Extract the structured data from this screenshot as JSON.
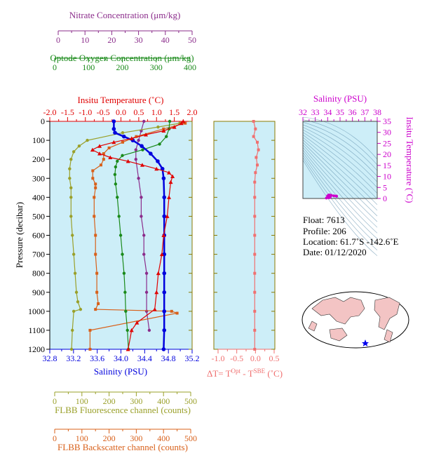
{
  "colors": {
    "nitrate": "#8b2c8b",
    "oxygen": "#1a8a1a",
    "temperature": "#e00000",
    "salinity": "#0000dd",
    "fluorescence": "#9aa02a",
    "backscatter": "#d8601a",
    "delta": "#f07070",
    "ts_salinity": "#cc00cc",
    "panel_bg": "#cdeef8",
    "frame": "#8a7a00"
  },
  "axes": {
    "nitrate": {
      "label": "Nitrate Concentration (μm/kg)",
      "ticks": [
        "0",
        "10",
        "20",
        "30",
        "40",
        "50"
      ]
    },
    "oxygen": {
      "label": "Optode Oxygen Concentration (μm/kg)",
      "ticks": [
        "0",
        "100",
        "200",
        "300",
        "400"
      ]
    },
    "temperature": {
      "label": "Insitu Temperature (˚C)",
      "ticks": [
        "-2.0",
        "-1.5",
        "-1.0",
        "-0.5",
        "0.0",
        "0.5",
        "1.0",
        "1.5",
        "2.0"
      ]
    },
    "salinity": {
      "label": "Salinity (PSU)",
      "ticks": [
        "32.8",
        "33.2",
        "33.6",
        "34.0",
        "34.4",
        "34.8",
        "35.2"
      ]
    },
    "pressure": {
      "label": "Pressure (decibar)",
      "ticks": [
        "0",
        "100",
        "200",
        "300",
        "400",
        "500",
        "600",
        "700",
        "800",
        "900",
        "1000",
        "1100",
        "1200"
      ]
    },
    "fluorescence": {
      "label": "FLBB Fluorescence channel (counts)",
      "ticks": [
        "0",
        "100",
        "200",
        "300",
        "400",
        "500"
      ]
    },
    "backscatter": {
      "label": "FLBB Backscatter channel (counts)",
      "ticks": [
        "0",
        "100",
        "200",
        "300",
        "400",
        "500"
      ]
    },
    "delta": {
      "label_main": "ΔT= T",
      "label_sup1": "Opt",
      "label_mid": " - T",
      "label_sup2": "SBE",
      "label_end": " (˚C)",
      "ticks": [
        "-1.0",
        "-0.5",
        "0.0",
        "0.5"
      ]
    },
    "ts_salinity": {
      "label": "Salinity (PSU)",
      "ticks": [
        "32",
        "33",
        "34",
        "35",
        "36",
        "37",
        "38"
      ]
    },
    "ts_temperature": {
      "label": "Insitu Temperature (˚C)",
      "ticks": [
        "0",
        "5",
        "10",
        "15",
        "20",
        "25",
        "30",
        "35"
      ]
    }
  },
  "info": {
    "float": "Float:  7613",
    "profile": "Profile:  206",
    "location": "Location:  61.7˚S  -142.6˚E",
    "date": "Date:  01/12/2020"
  },
  "chart_data": [
    {
      "type": "line",
      "name": "Insitu Temperature (˚C)",
      "unit": "C",
      "points": [
        [
          1.75,
          0
        ],
        [
          1.7,
          10
        ],
        [
          1.5,
          30
        ],
        [
          1.2,
          50
        ],
        [
          0.7,
          70
        ],
        [
          0.3,
          90
        ],
        [
          -0.2,
          110
        ],
        [
          -0.6,
          130
        ],
        [
          -0.8,
          150
        ],
        [
          -0.6,
          170
        ],
        [
          -0.3,
          190
        ],
        [
          0.2,
          210
        ],
        [
          0.6,
          230
        ],
        [
          1.0,
          250
        ],
        [
          1.35,
          270
        ],
        [
          1.45,
          290
        ],
        [
          1.4,
          320
        ],
        [
          1.35,
          400
        ],
        [
          1.3,
          500
        ],
        [
          1.2,
          600
        ],
        [
          1.15,
          700
        ],
        [
          1.05,
          800
        ],
        [
          1.0,
          900
        ],
        [
          0.95,
          990
        ],
        [
          0.45,
          1060
        ],
        [
          0.3,
          1100
        ],
        [
          0.2,
          1200
        ]
      ]
    },
    {
      "type": "line",
      "name": "Salinity (PSU)",
      "unit": "PSU",
      "points": [
        [
          33.88,
          0
        ],
        [
          33.88,
          40
        ],
        [
          33.9,
          60
        ],
        [
          34.05,
          80
        ],
        [
          34.2,
          100
        ],
        [
          34.35,
          130
        ],
        [
          34.5,
          170
        ],
        [
          34.62,
          210
        ],
        [
          34.7,
          250
        ],
        [
          34.72,
          300
        ],
        [
          34.73,
          400
        ],
        [
          34.73,
          500
        ],
        [
          34.73,
          600
        ],
        [
          34.73,
          700
        ],
        [
          34.73,
          800
        ],
        [
          34.73,
          900
        ],
        [
          34.73,
          1000
        ],
        [
          34.73,
          1100
        ],
        [
          34.72,
          1200
        ]
      ]
    },
    {
      "type": "line",
      "name": "Optode Oxygen Concentration (μm/kg)",
      "unit": "umol/kg",
      "points": [
        [
          340,
          0
        ],
        [
          338,
          40
        ],
        [
          330,
          80
        ],
        [
          310,
          120
        ],
        [
          260,
          150
        ],
        [
          200,
          180
        ],
        [
          185,
          210
        ],
        [
          180,
          240
        ],
        [
          178,
          280
        ],
        [
          180,
          330
        ],
        [
          185,
          400
        ],
        [
          190,
          500
        ],
        [
          195,
          600
        ],
        [
          200,
          700
        ],
        [
          205,
          800
        ],
        [
          208,
          900
        ],
        [
          210,
          1000
        ],
        [
          215,
          1100
        ],
        [
          218,
          1200
        ]
      ]
    },
    {
      "type": "line",
      "name": "Nitrate Concentration (μm/kg)",
      "unit": "umol/kg",
      "points": [
        [
          32,
          0
        ],
        [
          31,
          50
        ],
        [
          30,
          100
        ],
        [
          29,
          150
        ],
        [
          29,
          200
        ],
        [
          30,
          300
        ],
        [
          31,
          400
        ],
        [
          31,
          500
        ],
        [
          32,
          600
        ],
        [
          32,
          700
        ],
        [
          33,
          800
        ],
        [
          33,
          900
        ],
        [
          33,
          1000
        ],
        [
          34,
          1100
        ]
      ]
    },
    {
      "type": "line",
      "name": "FLBB Fluorescence channel (counts)",
      "unit": "counts",
      "points": [
        [
          460,
          10
        ],
        [
          380,
          30
        ],
        [
          250,
          60
        ],
        [
          120,
          100
        ],
        [
          90,
          130
        ],
        [
          70,
          160
        ],
        [
          60,
          200
        ],
        [
          55,
          250
        ],
        [
          55,
          300
        ],
        [
          60,
          350
        ],
        [
          60,
          400
        ],
        [
          60,
          500
        ],
        [
          65,
          600
        ],
        [
          70,
          700
        ],
        [
          75,
          800
        ],
        [
          80,
          900
        ],
        [
          85,
          950
        ],
        [
          95,
          990
        ],
        [
          70,
          1000
        ],
        [
          65,
          1100
        ],
        [
          62,
          1200
        ]
      ]
    },
    {
      "type": "line",
      "name": "FLBB Backscatter channel (counts)",
      "unit": "counts",
      "points": [
        [
          480,
          10
        ],
        [
          400,
          40
        ],
        [
          300,
          80
        ],
        [
          250,
          110
        ],
        [
          200,
          140
        ],
        [
          180,
          170
        ],
        [
          180,
          200
        ],
        [
          170,
          230
        ],
        [
          140,
          260
        ],
        [
          140,
          300
        ],
        [
          150,
          330
        ],
        [
          150,
          350
        ],
        [
          145,
          400
        ],
        [
          145,
          500
        ],
        [
          150,
          600
        ],
        [
          150,
          700
        ],
        [
          155,
          800
        ],
        [
          155,
          900
        ],
        [
          160,
          960
        ],
        [
          150,
          990
        ],
        [
          430,
          1000
        ],
        [
          450,
          1010
        ],
        [
          130,
          1100
        ],
        [
          130,
          1200
        ]
      ]
    },
    {
      "type": "line",
      "name": "ΔT",
      "unit": "C",
      "points": [
        [
          -0.05,
          0
        ],
        [
          0.0,
          40
        ],
        [
          -0.05,
          80
        ],
        [
          0.05,
          110
        ],
        [
          0.08,
          150
        ],
        [
          0.02,
          190
        ],
        [
          0.05,
          230
        ],
        [
          0.0,
          270
        ],
        [
          -0.02,
          320
        ],
        [
          -0.02,
          400
        ],
        [
          -0.02,
          500
        ],
        [
          -0.02,
          600
        ],
        [
          -0.02,
          700
        ],
        [
          -0.02,
          800
        ],
        [
          -0.02,
          900
        ],
        [
          -0.02,
          1000
        ],
        [
          -0.02,
          1100
        ],
        [
          -0.02,
          1200
        ]
      ]
    },
    {
      "type": "scatter",
      "name": "T-S",
      "unit": "PSU vs C",
      "points": [
        [
          33.9,
          0.2
        ],
        [
          34.0,
          1.2
        ],
        [
          34.1,
          1.6
        ],
        [
          34.2,
          1.5
        ],
        [
          34.3,
          1.4
        ],
        [
          34.5,
          1.2
        ],
        [
          34.7,
          1.1
        ],
        [
          34.72,
          1.0
        ],
        [
          34.1,
          0.3
        ],
        [
          34.2,
          0.5
        ]
      ]
    }
  ]
}
